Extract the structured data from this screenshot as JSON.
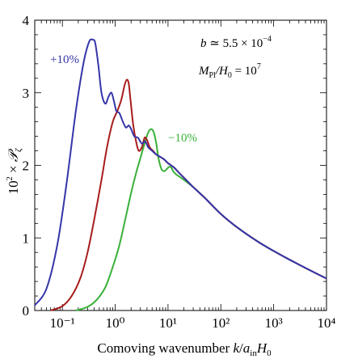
{
  "chart_data": {
    "type": "line",
    "xlabel": "Comoving wavenumber  k/a_in H_0",
    "ylabel": "10² × 𝒫_ζ",
    "xscale": "log",
    "xlim": [
      0.03,
      10000
    ],
    "ylim": [
      0,
      4
    ],
    "x_tick_labels": [
      "10⁻¹",
      "10⁰",
      "10¹",
      "10²",
      "10³",
      "10⁴"
    ],
    "x_tick_values": [
      0.1,
      1,
      10,
      100,
      1000,
      10000
    ],
    "y_tick_labels": [
      "0",
      "1",
      "2",
      "3",
      "4"
    ],
    "y_tick_values": [
      0,
      1,
      2,
      3,
      4
    ],
    "grid": false,
    "annotations": {
      "b_value": "b ≃ 5.5 × 10⁻⁴",
      "mass_ratio": "M_Pl/H_0 = 10⁷"
    },
    "series": [
      {
        "name": "+10%",
        "color": "#3535a8",
        "x": [
          0.03,
          0.05,
          0.08,
          0.12,
          0.18,
          0.25,
          0.32,
          0.38,
          0.42,
          0.48,
          0.55,
          0.65,
          0.75,
          0.85,
          0.95,
          1.05,
          1.2,
          1.4,
          1.6,
          1.8,
          2.0,
          2.3,
          2.7,
          3.2,
          3.7,
          4.2,
          5.0,
          6.0,
          7.0,
          8.5,
          10,
          13,
          16,
          20,
          30,
          50,
          100,
          200,
          500,
          1000,
          2000,
          5000,
          10000
        ],
        "values": [
          0.07,
          0.3,
          0.9,
          1.75,
          2.75,
          3.4,
          3.7,
          3.73,
          3.68,
          3.38,
          3.0,
          2.85,
          2.95,
          3.0,
          2.88,
          2.75,
          2.72,
          2.6,
          2.52,
          2.55,
          2.5,
          2.4,
          2.38,
          2.3,
          2.33,
          2.25,
          2.2,
          2.15,
          2.12,
          2.08,
          2.03,
          1.97,
          1.9,
          1.83,
          1.7,
          1.55,
          1.33,
          1.15,
          0.95,
          0.82,
          0.7,
          0.55,
          0.44
        ]
      },
      {
        "name": "",
        "color": "#a81c1c",
        "x": [
          0.06,
          0.1,
          0.15,
          0.22,
          0.3,
          0.4,
          0.55,
          0.7,
          0.9,
          1.1,
          1.3,
          1.5,
          1.65,
          1.8,
          1.95,
          2.2,
          2.5,
          2.8,
          3.2,
          3.6,
          4.0,
          4.5,
          5.2,
          6.0,
          7.0,
          8.5,
          10,
          13,
          16,
          20,
          30,
          50,
          100,
          200,
          500,
          1000,
          2000,
          5000,
          10000
        ],
        "values": [
          0.0,
          0.06,
          0.2,
          0.45,
          0.8,
          1.25,
          1.8,
          2.25,
          2.6,
          2.75,
          2.9,
          3.1,
          3.18,
          3.13,
          2.9,
          2.55,
          2.32,
          2.2,
          2.25,
          2.38,
          2.35,
          2.25,
          2.2,
          2.15,
          2.12,
          2.08,
          2.03,
          1.97,
          1.9,
          1.83,
          1.7,
          1.55,
          1.33,
          1.15,
          0.95,
          0.82,
          0.7,
          0.55,
          0.44
        ]
      },
      {
        "name": "−10%",
        "color": "#38b038",
        "x": [
          0.18,
          0.3,
          0.45,
          0.65,
          0.9,
          1.2,
          1.6,
          2.0,
          2.5,
          3.0,
          3.6,
          4.2,
          4.8,
          5.4,
          6.0,
          6.6,
          7.5,
          8.5,
          9.5,
          10.5,
          11.5,
          12.5,
          14,
          16,
          20,
          30,
          50,
          100,
          200,
          500,
          1000,
          2000,
          5000,
          10000
        ],
        "values": [
          0.0,
          0.05,
          0.15,
          0.32,
          0.6,
          0.9,
          1.3,
          1.62,
          1.9,
          2.1,
          2.3,
          2.45,
          2.5,
          2.45,
          2.3,
          2.1,
          1.95,
          1.92,
          1.95,
          1.98,
          1.97,
          1.92,
          1.88,
          1.85,
          1.8,
          1.7,
          1.55,
          1.33,
          1.15,
          0.95,
          0.82,
          0.7,
          0.55,
          0.44
        ]
      }
    ]
  },
  "labels": {
    "plus10": "+10%",
    "minus10": "−10%",
    "b_prefix": "b",
    "b_rest": " ≃ 5.5 × 10",
    "b_exp": "−4",
    "m_prefix": "M",
    "m_sub": "Pl",
    "m_mid": "/H",
    "m_sub0": "0",
    "m_rest": " = 10",
    "m_exp": "7",
    "ylabel_a": "10",
    "ylabel_exp": "2",
    "ylabel_b": " × ",
    "ylabel_p": "𝒫",
    "ylabel_sub": "ζ",
    "xlabel_a": "Comoving wavenumber  ",
    "xlabel_k": "k",
    "xlabel_slash": "/",
    "xlabel_a2": "a",
    "xlabel_in": "in",
    "xlabel_H": "H",
    "xlabel_0": "0"
  }
}
